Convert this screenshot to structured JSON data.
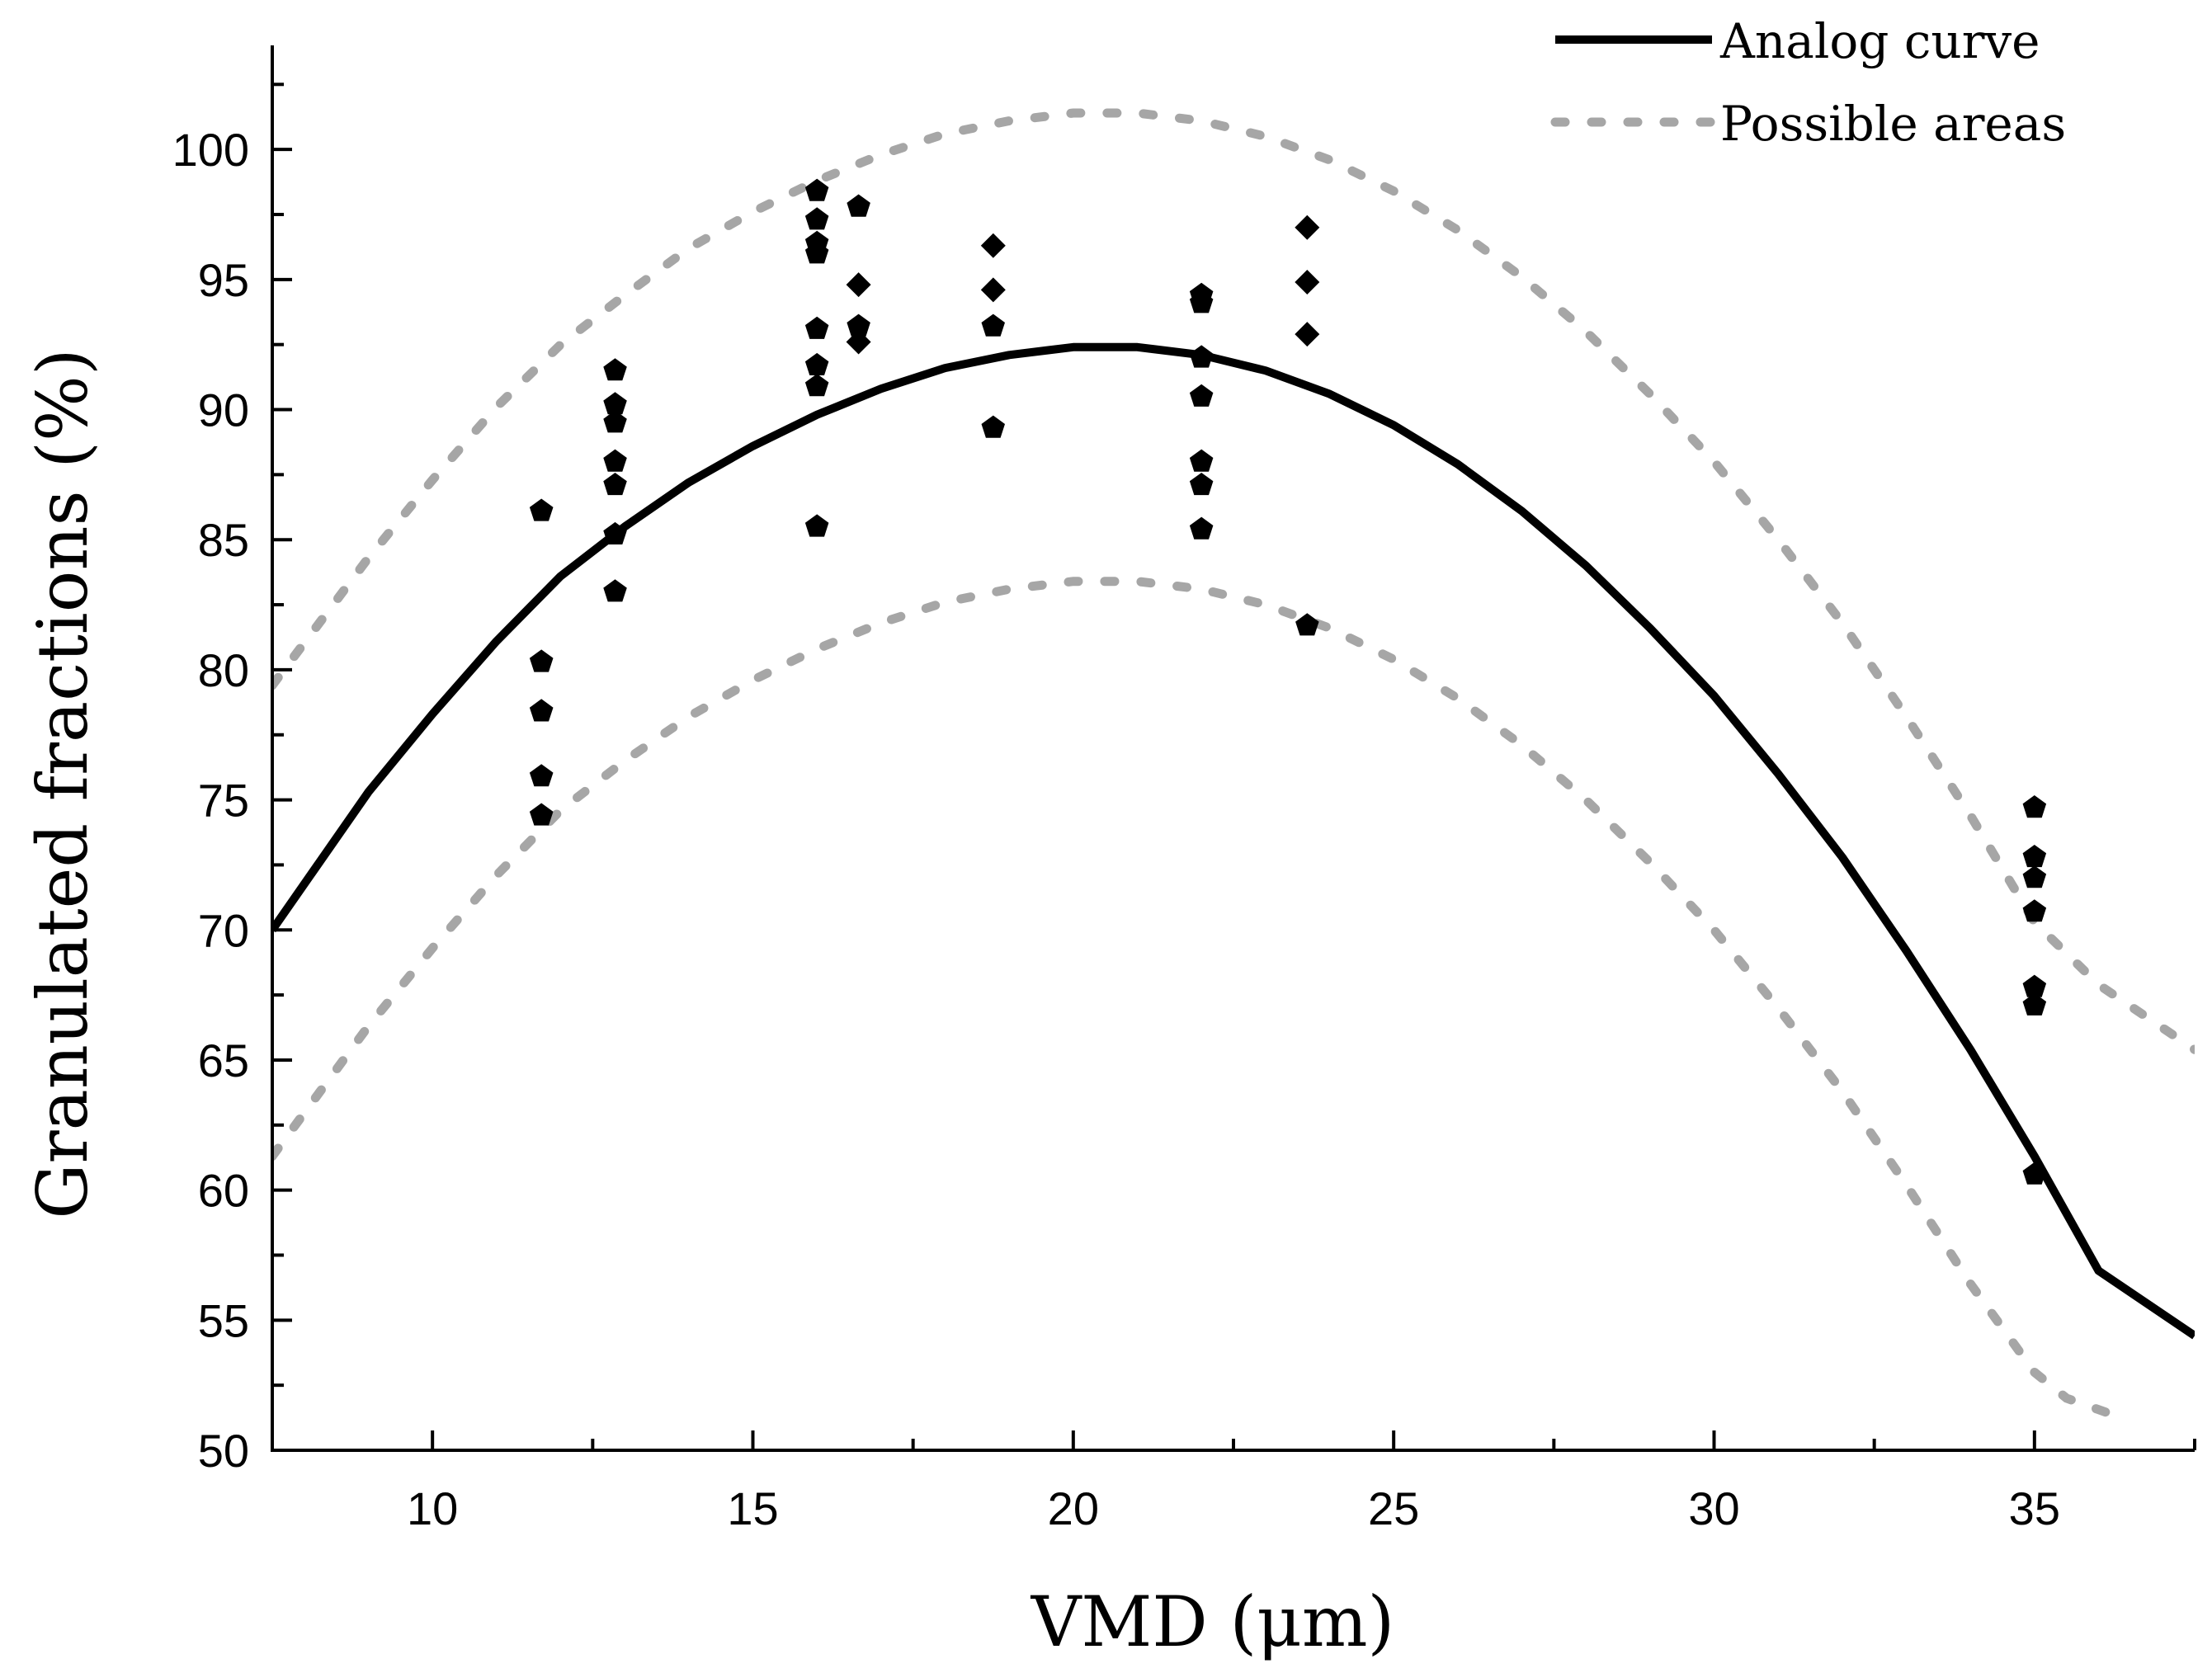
{
  "chart_data": {
    "type": "scatter",
    "title": "",
    "xlabel": "VMD (μm)",
    "ylabel": "Granulated fractions (%)",
    "xlim": [
      7.5,
      37.5
    ],
    "ylim": [
      50,
      104
    ],
    "x_ticks": [
      10,
      15,
      20,
      25,
      30,
      35
    ],
    "x_tick_labels": [
      "10",
      "15",
      "20",
      "25",
      "30",
      "35"
    ],
    "y_ticks": [
      50,
      55,
      60,
      65,
      70,
      75,
      80,
      85,
      90,
      95,
      100
    ],
    "y_tick_labels": [
      "50",
      "55",
      "60",
      "65",
      "70",
      "75",
      "80",
      "85",
      "90",
      "95",
      "100"
    ],
    "grid": false,
    "legend_position": "top-right",
    "legend": [
      {
        "label": "Analog curve",
        "style": "solid",
        "color": "#000000"
      },
      {
        "label": "Possible areas",
        "style": "dotted",
        "color": "#a6a6a6"
      }
    ],
    "curves": [
      {
        "name": "Analog curve",
        "style": "solid",
        "color": "#000000",
        "x": [
          7.5,
          9,
          10,
          11,
          12,
          13,
          14,
          15,
          16,
          17,
          18,
          19,
          20,
          21,
          22,
          23,
          24,
          25,
          26,
          27,
          28,
          29,
          30,
          31,
          32,
          33,
          34,
          35,
          36,
          37.5
        ],
        "y": [
          70.0,
          75.3,
          78.3,
          81.1,
          83.6,
          85.5,
          87.2,
          88.6,
          89.8,
          90.8,
          91.6,
          92.1,
          92.4,
          92.4,
          92.1,
          91.5,
          90.6,
          89.4,
          87.9,
          86.1,
          84.0,
          81.6,
          79.0,
          76.0,
          72.8,
          69.2,
          65.4,
          61.3,
          56.9,
          54.4
        ]
      },
      {
        "name": "Possible areas (upper)",
        "style": "dotted",
        "color": "#a6a6a6",
        "x": [
          7.5,
          9,
          10,
          11,
          12,
          13,
          14,
          15,
          16,
          17,
          18,
          19,
          20,
          21,
          22,
          23,
          24,
          25,
          26,
          27,
          28,
          29,
          30,
          31,
          32,
          33,
          34,
          35,
          36,
          37.5
        ],
        "y": [
          79.4,
          84.3,
          87.3,
          90.1,
          92.5,
          94.4,
          96.2,
          97.6,
          98.8,
          99.8,
          100.6,
          101.1,
          101.4,
          101.4,
          101.1,
          100.5,
          99.6,
          98.4,
          96.9,
          95.1,
          93.0,
          90.6,
          88.0,
          85.0,
          81.8,
          78.2,
          74.4,
          70.3,
          67.9,
          65.4
        ]
      },
      {
        "name": "Possible areas (lower)",
        "style": "dotted",
        "color": "#a6a6a6",
        "x": [
          7.5,
          9,
          10,
          11,
          12,
          13,
          14,
          15,
          16,
          17,
          18,
          19,
          20,
          21,
          22,
          23,
          24,
          25,
          26,
          27,
          28,
          29,
          30,
          31,
          32,
          33,
          34,
          35,
          35.5,
          36.3
        ],
        "y": [
          61.3,
          66.3,
          69.3,
          72.1,
          74.6,
          76.5,
          78.2,
          79.6,
          80.8,
          81.8,
          82.6,
          83.1,
          83.4,
          83.4,
          83.1,
          82.5,
          81.6,
          80.4,
          78.9,
          77.1,
          75.0,
          72.6,
          70.0,
          67.0,
          63.8,
          60.2,
          56.4,
          53.0,
          52.0,
          51.3
        ]
      }
    ],
    "series": [
      {
        "name": "Pentagon markers",
        "marker": "pentagon",
        "color": "#000000",
        "points": [
          [
            11.7,
            86.1
          ],
          [
            11.7,
            80.3
          ],
          [
            11.7,
            78.4
          ],
          [
            11.7,
            75.9
          ],
          [
            11.7,
            74.4
          ],
          [
            12.85,
            91.5
          ],
          [
            12.85,
            90.2
          ],
          [
            12.85,
            89.5
          ],
          [
            12.85,
            88.0
          ],
          [
            12.85,
            87.1
          ],
          [
            12.85,
            85.2
          ],
          [
            12.85,
            83.0
          ],
          [
            16.0,
            98.4
          ],
          [
            16.0,
            97.3
          ],
          [
            16.0,
            96.4
          ],
          [
            16.0,
            96.0
          ],
          [
            16.0,
            93.1
          ],
          [
            16.0,
            91.7
          ],
          [
            16.0,
            90.9
          ],
          [
            16.0,
            85.5
          ],
          [
            16.65,
            97.8
          ],
          [
            16.65,
            93.2
          ],
          [
            18.75,
            93.2
          ],
          [
            18.75,
            89.3
          ],
          [
            22.0,
            94.4
          ],
          [
            22.0,
            94.1
          ],
          [
            22.0,
            92.0
          ],
          [
            22.0,
            90.5
          ],
          [
            22.0,
            88.0
          ],
          [
            22.0,
            87.1
          ],
          [
            22.0,
            85.4
          ],
          [
            23.65,
            81.7
          ],
          [
            35.0,
            74.7
          ],
          [
            35.0,
            72.8
          ],
          [
            35.0,
            72.0
          ],
          [
            35.0,
            70.7
          ],
          [
            35.0,
            67.8
          ],
          [
            35.0,
            67.1
          ],
          [
            35.0,
            60.6
          ]
        ]
      },
      {
        "name": "Diamond markers",
        "marker": "diamond",
        "color": "#000000",
        "points": [
          [
            16.65,
            94.8
          ],
          [
            16.65,
            92.6
          ],
          [
            18.75,
            96.3
          ],
          [
            18.75,
            94.6
          ],
          [
            23.65,
            97.0
          ],
          [
            23.65,
            94.9
          ],
          [
            23.65,
            92.9
          ]
        ]
      }
    ]
  }
}
